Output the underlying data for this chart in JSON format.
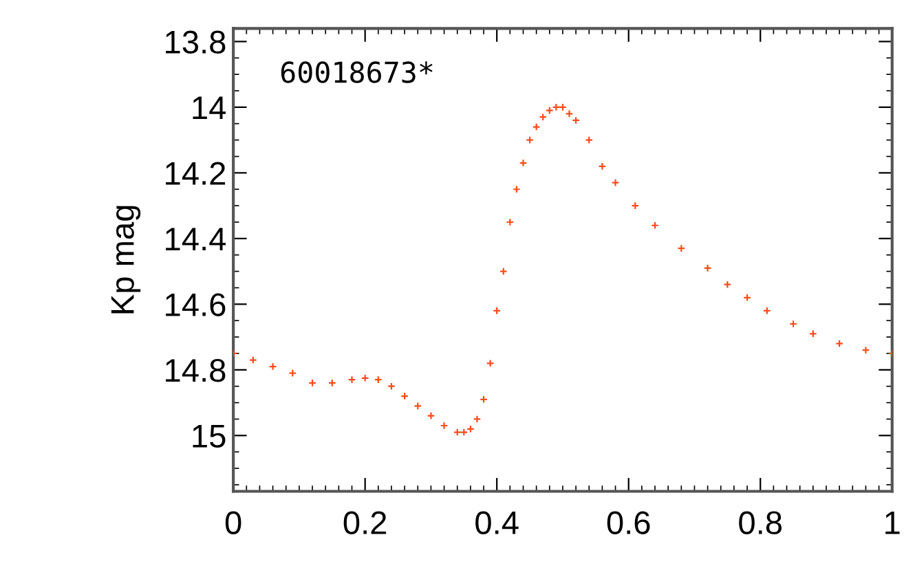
{
  "chart_data": {
    "type": "scatter",
    "ylabel": "Kp mag",
    "annotations": [
      "60018673*"
    ],
    "x": [
      0,
      0.03,
      0.06,
      0.09,
      0.12,
      0.15,
      0.18,
      0.2,
      0.22,
      0.24,
      0.26,
      0.28,
      0.3,
      0.32,
      0.34,
      0.35,
      0.36,
      0.37,
      0.38,
      0.39,
      0.4,
      0.41,
      0.42,
      0.43,
      0.44,
      0.45,
      0.46,
      0.47,
      0.48,
      0.49,
      0.5,
      0.51,
      0.52,
      0.54,
      0.56,
      0.58,
      0.61,
      0.64,
      0.68,
      0.72,
      0.75,
      0.78,
      0.81,
      0.85,
      0.88,
      0.92,
      0.96,
      1.0
    ],
    "series": [
      {
        "color": "#ff4a1a",
        "values": [
          14.75,
          14.77,
          14.79,
          14.81,
          14.84,
          14.84,
          14.83,
          14.825,
          14.83,
          14.85,
          14.88,
          14.91,
          14.94,
          14.97,
          14.99,
          14.99,
          14.98,
          14.95,
          14.89,
          14.78,
          14.62,
          14.5,
          14.35,
          14.25,
          14.17,
          14.1,
          14.06,
          14.03,
          14.01,
          14.0,
          14.0,
          14.02,
          14.04,
          14.1,
          14.18,
          14.23,
          14.3,
          14.36,
          14.43,
          14.49,
          14.54,
          14.58,
          14.62,
          14.66,
          14.69,
          14.72,
          14.74,
          14.75
        ]
      }
    ],
    "xlim": [
      0,
      1
    ],
    "xticks": [
      0,
      0.2,
      0.4,
      0.6,
      0.8,
      1
    ],
    "ylim": [
      15.17,
      13.76
    ],
    "yticks": [
      13.8,
      14,
      14.2,
      14.4,
      14.6,
      14.8,
      15
    ],
    "marker": "cross",
    "grid": false
  }
}
